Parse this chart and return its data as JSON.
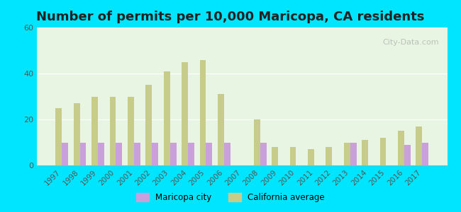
{
  "title": "Number of permits per 10,000 Maricopa, CA residents",
  "years": [
    1997,
    1998,
    1999,
    2000,
    2001,
    2002,
    2003,
    2004,
    2005,
    2006,
    2007,
    2008,
    2009,
    2010,
    2011,
    2012,
    2013,
    2014,
    2015,
    2016,
    2017
  ],
  "maricopa": [
    10,
    10,
    10,
    10,
    10,
    10,
    10,
    10,
    10,
    10,
    0,
    10,
    0,
    0,
    0,
    0,
    10,
    0,
    0,
    9,
    10
  ],
  "california": [
    25,
    27,
    30,
    30,
    30,
    35,
    41,
    45,
    46,
    31,
    0,
    20,
    8,
    8,
    7,
    8,
    10,
    11,
    12,
    15,
    17
  ],
  "maricopa_color": "#c9a0dc",
  "california_color": "#c8cc8a",
  "background_top": "#e8f5e0",
  "background_bottom": "#f0fdf0",
  "outer_bg": "#00e5ff",
  "ylim": [
    0,
    60
  ],
  "yticks": [
    0,
    20,
    40,
    60
  ],
  "bar_width": 0.35,
  "title_fontsize": 13,
  "watermark": "City-Data.com"
}
